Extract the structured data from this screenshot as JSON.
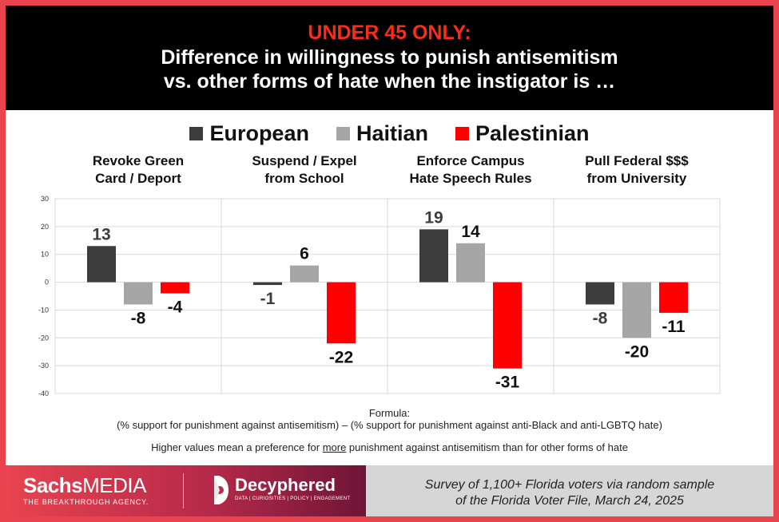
{
  "header": {
    "title_accent": "UNDER 45 ONLY:",
    "title_line2": "Difference in willingness to punish antisemitism",
    "title_line3": "vs. other forms of hate when the instigator is …"
  },
  "colors": {
    "accent_red": "#ff2a1a",
    "European": "#3d3d3d",
    "Haitian": "#a6a6a6",
    "Palestinian": "#ff0000"
  },
  "chart_data": {
    "type": "bar",
    "categories": [
      [
        "Revoke Green",
        "Card / Deport"
      ],
      [
        "Suspend / Expel",
        "from School"
      ],
      [
        "Enforce Campus",
        "Hate Speech Rules"
      ],
      [
        "Pull Federal $$$",
        "from University"
      ]
    ],
    "series": [
      {
        "name": "European",
        "values": [
          13,
          -1,
          19,
          -8
        ]
      },
      {
        "name": "Haitian",
        "values": [
          -8,
          6,
          14,
          -20
        ]
      },
      {
        "name": "Palestinian",
        "values": [
          -4,
          -22,
          -31,
          -11
        ]
      }
    ],
    "yticks": [
      30,
      20,
      10,
      0,
      -10,
      -20,
      -30,
      -40
    ],
    "ylim": [
      -40,
      30
    ],
    "grid": true,
    "legend_position": "top-center"
  },
  "notes": {
    "formula_label": "Formula:",
    "formula_text": "(% support for punishment against antisemitism) – (% support for punishment against anti-Black and anti-LGBTQ hate)",
    "higher_pre": "Higher values mean a preference for ",
    "higher_em": "more",
    "higher_post": " punishment against antisemitism than for other forms of hate"
  },
  "footer": {
    "sachs_bold": "Sachs",
    "sachs_rest": "MEDIA",
    "sachs_tag": "THE BREAKTHROUGH AGENCY.",
    "decyphered_name": "Decyphered",
    "decyphered_tag": "DATA | CURIOSITIES | POLICY | ENGAGEMENT",
    "survey_line1": "Survey of  1,100+ Florida voters via random sample",
    "survey_line2": "of  the Florida Voter File, March 24, 2025"
  }
}
